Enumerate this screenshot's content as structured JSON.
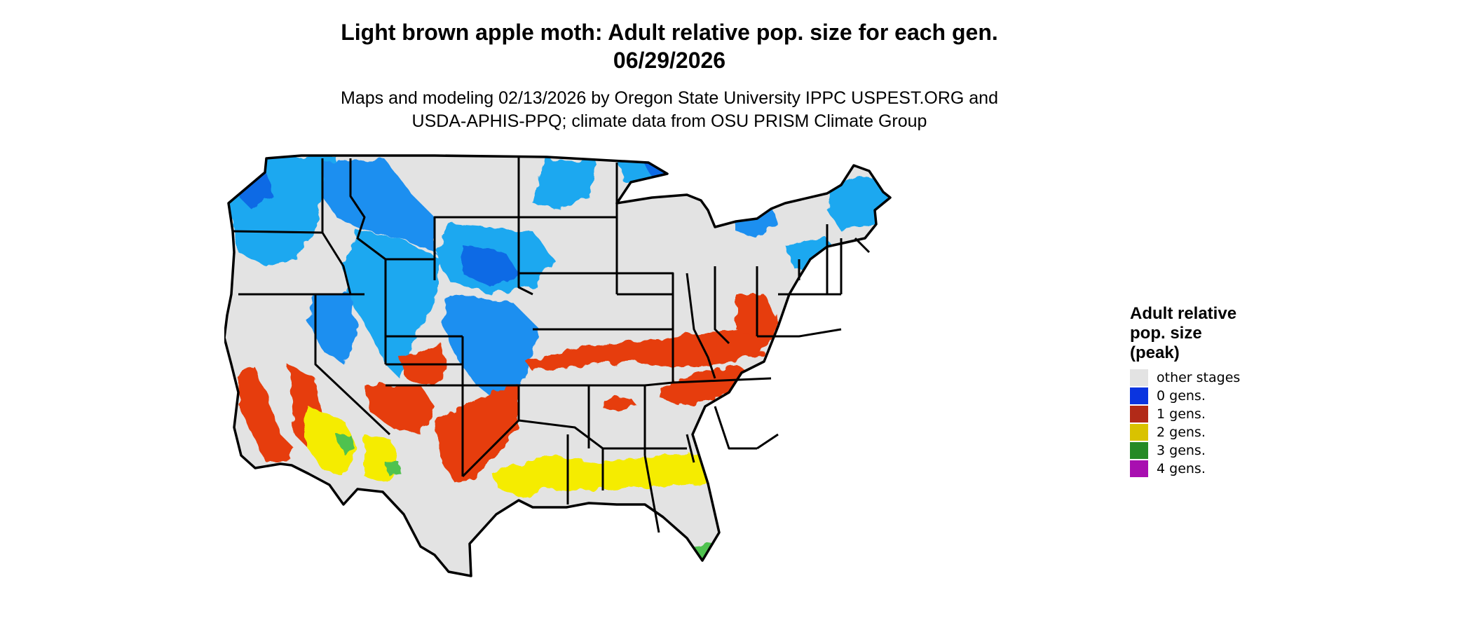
{
  "title": {
    "line1": "Light brown apple moth: Adult relative pop. size for each gen.",
    "line2": "06/29/2026"
  },
  "subtitle": {
    "line1": "Maps and modeling 02/13/2026 by Oregon State University IPPC USPEST.ORG and",
    "line2": "USDA-APHIS-PPQ; climate data from OSU PRISM Climate Group"
  },
  "legend": {
    "title_line1": "Adult relative",
    "title_line2": "pop. size",
    "title_line3": "(peak)",
    "items": [
      {
        "label": "other stages",
        "color": "#e3e3e3"
      },
      {
        "label": "0 gens.",
        "color": "#0a34e0"
      },
      {
        "label": "1 gens.",
        "color": "#b22a18"
      },
      {
        "label": "2 gens.",
        "color": "#d9c200"
      },
      {
        "label": "3 gens.",
        "color": "#258a25"
      },
      {
        "label": "4 gens.",
        "color": "#a80fb0"
      }
    ]
  },
  "map_colors": {
    "land": "#e3e3e3",
    "border": "#000000",
    "zero_gens_fill": "#1fa8f0",
    "zero_gens_dark": "#0a50e0",
    "one_gens_fill": "#e63c0a",
    "two_gens_fill": "#f5ec00",
    "three_gens_fill": "#4fc24f"
  }
}
